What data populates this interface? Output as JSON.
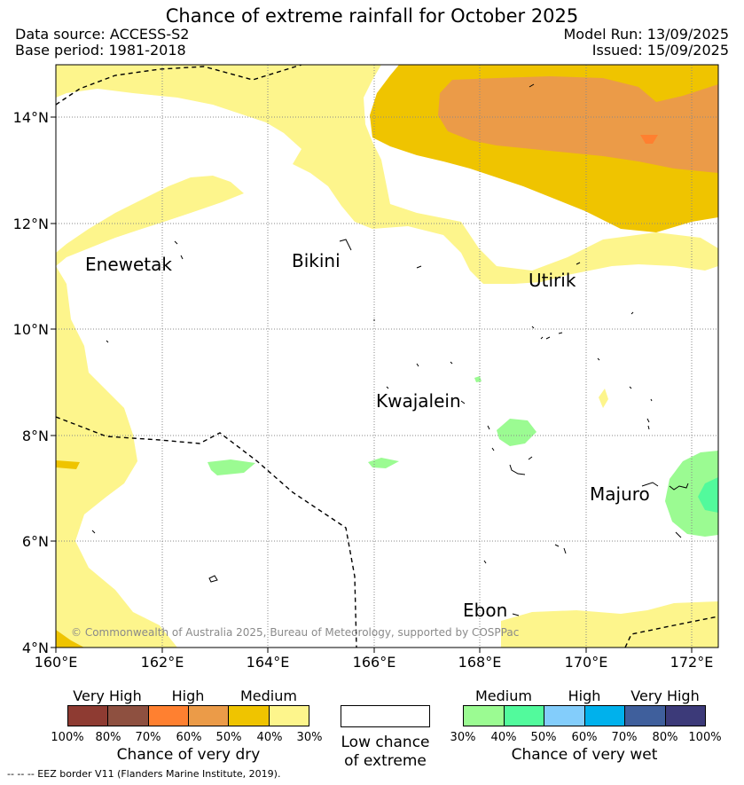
{
  "title": "Chance of extreme rainfall for October 2025",
  "data_source": "Data source: ACCESS-S2",
  "base_period": "Base period: 1981-2018",
  "model_run": "Model Run: 13/09/2025",
  "issued": "Issued: 15/09/2025",
  "map": {
    "lon_range": [
      160,
      172.5
    ],
    "lat_range": [
      4,
      15
    ],
    "x_ticks": [
      "160°E",
      "162°E",
      "164°E",
      "166°E",
      "168°E",
      "170°E",
      "172°E"
    ],
    "y_ticks": [
      "4°N",
      "6°N",
      "8°N",
      "10°N",
      "12°N",
      "14°N"
    ],
    "places": [
      {
        "name": "Enewetak"
      },
      {
        "name": "Bikini"
      },
      {
        "name": "Utirik"
      },
      {
        "name": "Kwajalein"
      },
      {
        "name": "Majuro"
      },
      {
        "name": "Ebon"
      }
    ],
    "grid": true
  },
  "copyright": "© Commonwealth of Australia 2025, Bureau of Meteorology, supported by COSPPac",
  "legend_dry": {
    "labels": [
      "Very High",
      "High",
      "Medium"
    ],
    "percents": [
      "100%",
      "80%",
      "70%",
      "60%",
      "50%",
      "40%",
      "30%"
    ],
    "colors": [
      "#8e3b32",
      "#8e5040",
      "#ff8030",
      "#eb9b48",
      "#efc400",
      "#fdf58c"
    ],
    "caption": "Chance of very dry"
  },
  "legend_low": {
    "line1": "Low chance",
    "line2": "of extreme"
  },
  "legend_wet": {
    "labels": [
      "Medium",
      "High",
      "Very High"
    ],
    "percents": [
      "30%",
      "40%",
      "50%",
      "60%",
      "70%",
      "80%",
      "100%"
    ],
    "colors": [
      "#9bfb92",
      "#52fa9c",
      "#83cdfb",
      "#00b1ec",
      "#3f5f9c",
      "#3c3a79"
    ],
    "caption": "Chance of very wet"
  },
  "eez_note": "--  --  -- EEZ border V11 (Flanders Marine Institute, 2019)."
}
